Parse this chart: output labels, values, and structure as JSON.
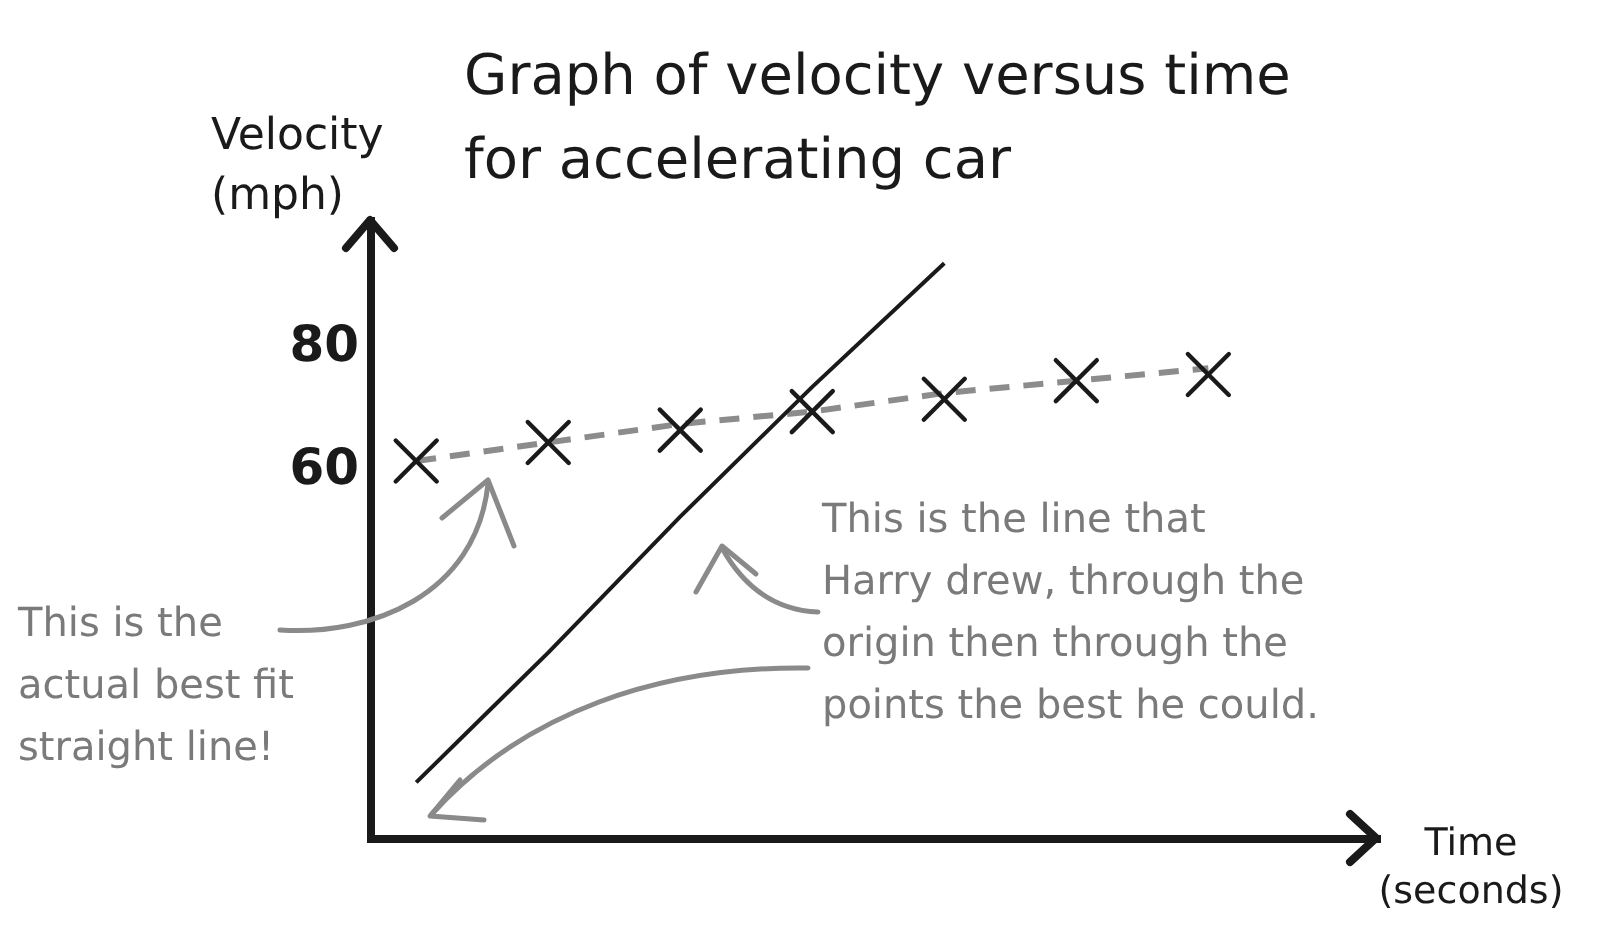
{
  "chart_data": {
    "type": "scatter",
    "title": "Graph of velocity versus time\nfor accelerating car",
    "xlabel": "Time\n(seconds)",
    "ylabel": "Velocity\n(mph)",
    "categories": [
      null,
      null,
      null,
      null,
      null,
      null,
      null
    ],
    "series": [
      {
        "type": "line",
        "color": "#8c8c8c",
        "line_style": "dashed",
        "values": [
          61,
          64,
          67,
          69,
          72,
          74,
          76
        ]
      },
      {
        "type": "line",
        "color": "#1a1a1a",
        "line_style": "solid",
        "values": [
          9,
          30,
          52,
          73,
          93,
          null,
          null
        ]
      },
      {
        "color": "#1a1a1a",
        "marker": "cross",
        "values": [
          61,
          64,
          66,
          69,
          71,
          74,
          75
        ]
      }
    ],
    "ylim": [
      0,
      100
    ],
    "yticks": [
      60,
      80
    ],
    "tick_labels": "y",
    "annotations": [
      "This is the\nactual best fit\nstraight line!",
      "This is the line that\nHarry drew, through the\norigin then through the\npoints the best he could."
    ]
  }
}
